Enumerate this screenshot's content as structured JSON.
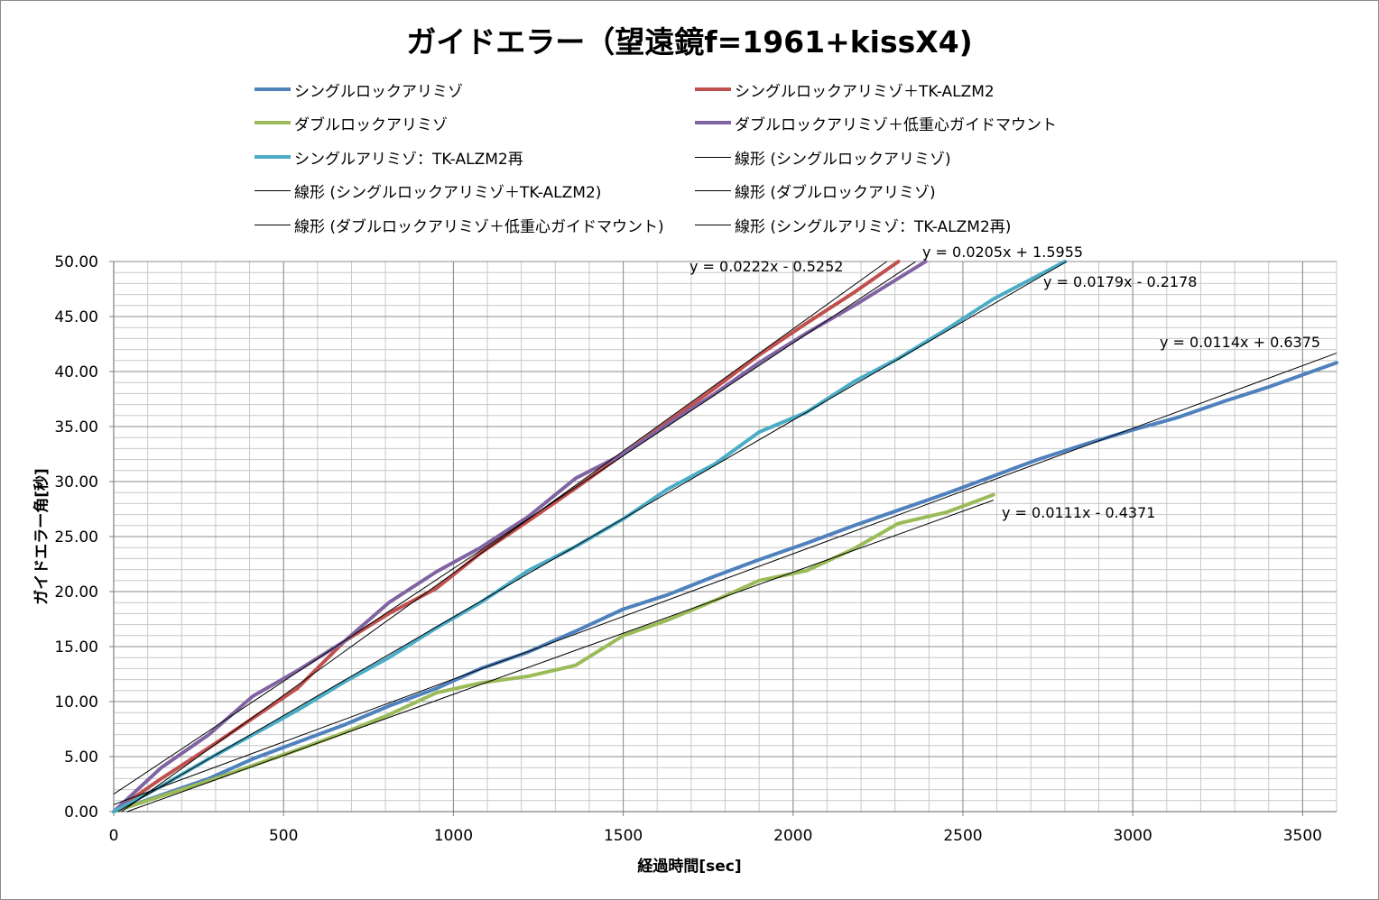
{
  "chart_data": {
    "type": "line",
    "title": "ガイドエラー（望遠鏡f=1961+kissX4)",
    "xlabel": "経過時間[sec]",
    "ylabel": "ガイドエラー角[秒]",
    "xlim": [
      0,
      3600
    ],
    "ylim": [
      0,
      50
    ],
    "x_ticks": [
      "0",
      "500",
      "1000",
      "1500",
      "2000",
      "2500",
      "3000",
      "3500"
    ],
    "y_ticks": [
      "0.00",
      "5.00",
      "10.00",
      "15.00",
      "20.00",
      "25.00",
      "30.00",
      "35.00",
      "40.00",
      "45.00",
      "50.00"
    ],
    "grid": "major and minor",
    "legend_position": "top",
    "series": [
      {
        "name": "シングルロックアリミゾ",
        "color": "#4F81BD",
        "x": [
          0,
          140,
          280,
          410,
          540,
          680,
          810,
          950,
          1080,
          1220,
          1360,
          1500,
          1630,
          1770,
          1900,
          2040,
          2180,
          2310,
          2450,
          2590,
          2720,
          2860,
          3000,
          3130,
          3270,
          3400,
          3600
        ],
        "y": [
          0,
          1.5,
          3.0,
          4.8,
          6.3,
          7.9,
          9.6,
          11.2,
          13.0,
          14.5,
          16.4,
          18.4,
          19.7,
          21.4,
          22.9,
          24.4,
          26.0,
          27.4,
          28.9,
          30.5,
          32.0,
          33.4,
          34.7,
          35.8,
          37.3,
          38.6,
          40.8
        ]
      },
      {
        "name": "シングルロックアリミゾ＋TK-ALZM2",
        "color": "#C0504D",
        "x": [
          0,
          140,
          280,
          410,
          540,
          680,
          810,
          950,
          1080,
          1220,
          1360,
          1500,
          1630,
          1770,
          1900,
          2040,
          2180,
          2310
        ],
        "y": [
          0,
          3.0,
          5.8,
          8.5,
          11.2,
          15.5,
          18.0,
          20.3,
          23.5,
          26.4,
          29.4,
          32.5,
          35.4,
          38.5,
          41.5,
          44.4,
          47.2,
          50.0
        ]
      },
      {
        "name": "ダブルロックアリミゾ",
        "color": "#9BBB59",
        "x": [
          0,
          140,
          280,
          410,
          540,
          680,
          810,
          950,
          1080,
          1220,
          1360,
          1500,
          1630,
          1770,
          1900,
          2040,
          2180,
          2310,
          2450,
          2590
        ],
        "y": [
          0,
          1.4,
          2.8,
          4.2,
          5.6,
          7.2,
          8.8,
          10.8,
          11.7,
          12.3,
          13.3,
          16.0,
          17.4,
          19.2,
          21.0,
          21.9,
          23.9,
          26.2,
          27.2,
          28.8
        ]
      },
      {
        "name": "ダブルロックアリミゾ＋低重心ガイドマウント",
        "color": "#8064A2",
        "x": [
          0,
          140,
          280,
          410,
          540,
          680,
          810,
          950,
          1080,
          1220,
          1360,
          1500,
          1630,
          1770,
          1900,
          2040,
          2180,
          2390
        ],
        "y": [
          0,
          4.0,
          7.0,
          10.5,
          12.8,
          15.5,
          19.0,
          21.8,
          24.0,
          26.8,
          30.3,
          32.5,
          35.2,
          38.0,
          40.8,
          43.5,
          46.0,
          50.0
        ]
      },
      {
        "name": "シングルアリミゾ：TK-ALZM2再",
        "color": "#4BACC6",
        "x": [
          0,
          140,
          280,
          410,
          540,
          680,
          810,
          950,
          1080,
          1220,
          1360,
          1500,
          1630,
          1770,
          1900,
          2040,
          2180,
          2310,
          2450,
          2590,
          2800
        ],
        "y": [
          0,
          2.3,
          4.8,
          7.0,
          9.2,
          11.8,
          14.0,
          16.7,
          19.0,
          21.9,
          24.1,
          26.6,
          29.3,
          31.6,
          34.5,
          36.3,
          39.1,
          41.2,
          43.8,
          46.6,
          50.0
        ]
      }
    ],
    "trendlines": [
      {
        "name": "線形 (シングルロックアリミゾ)",
        "color": "#000000",
        "slope": 0.0114,
        "intercept": 0.6375,
        "equation": "y = 0.0114x + 0.6375",
        "x_range": [
          0,
          3600
        ]
      },
      {
        "name": "線形 (シングルロックアリミゾ＋TK-ALZM2)",
        "color": "#000000",
        "slope": 0.0205,
        "intercept": 1.5955,
        "equation": "y = 0.0205x + 1.5955",
        "x_range": [
          0,
          2360
        ]
      },
      {
        "name": "線形 (ダブルロックアリミゾ)",
        "color": "#000000",
        "slope": 0.0111,
        "intercept": -0.4371,
        "equation": "y = 0.0111x - 0.4371",
        "x_range": [
          0,
          2590
        ]
      },
      {
        "name": "線形 (ダブルロックアリミゾ＋低重心ガイドマウント)",
        "color": "#000000",
        "slope": 0.0222,
        "intercept": -0.5252,
        "equation": "y = 0.0222x - 0.5252",
        "x_range": [
          0,
          2280
        ]
      },
      {
        "name": "線形 (シングルアリミゾ：TK-ALZM2再)",
        "color": "#000000",
        "slope": 0.0179,
        "intercept": -0.2178,
        "equation": "y = 0.0179x - 0.2178",
        "x_range": [
          0,
          2810
        ]
      }
    ]
  },
  "legend": {
    "items": [
      {
        "label": "シングルロックアリミゾ",
        "color": "#4F81BD",
        "style": "thick"
      },
      {
        "label": "シングルロックアリミゾ＋TK-ALZM2",
        "color": "#C0504D",
        "style": "thick"
      },
      {
        "label": "ダブルロックアリミゾ",
        "color": "#9BBB59",
        "style": "thick"
      },
      {
        "label": "ダブルロックアリミゾ＋低重心ガイドマウント",
        "color": "#8064A2",
        "style": "thick"
      },
      {
        "label": "シングルアリミゾ：TK-ALZM2再",
        "color": "#4BACC6",
        "style": "thick"
      },
      {
        "label": "線形 (シングルロックアリミゾ)",
        "color": "#000000",
        "style": "thin"
      },
      {
        "label": "線形 (シングルロックアリミゾ＋TK-ALZM2)",
        "color": "#000000",
        "style": "thin"
      },
      {
        "label": "線形 (ダブルロックアリミゾ)",
        "color": "#000000",
        "style": "thin"
      },
      {
        "label": "線形 (ダブルロックアリミゾ＋低重心ガイドマウント)",
        "color": "#000000",
        "style": "thin"
      },
      {
        "label": "線形 (シングルアリミゾ：TK-ALZM2再)",
        "color": "#000000",
        "style": "thin"
      }
    ]
  }
}
